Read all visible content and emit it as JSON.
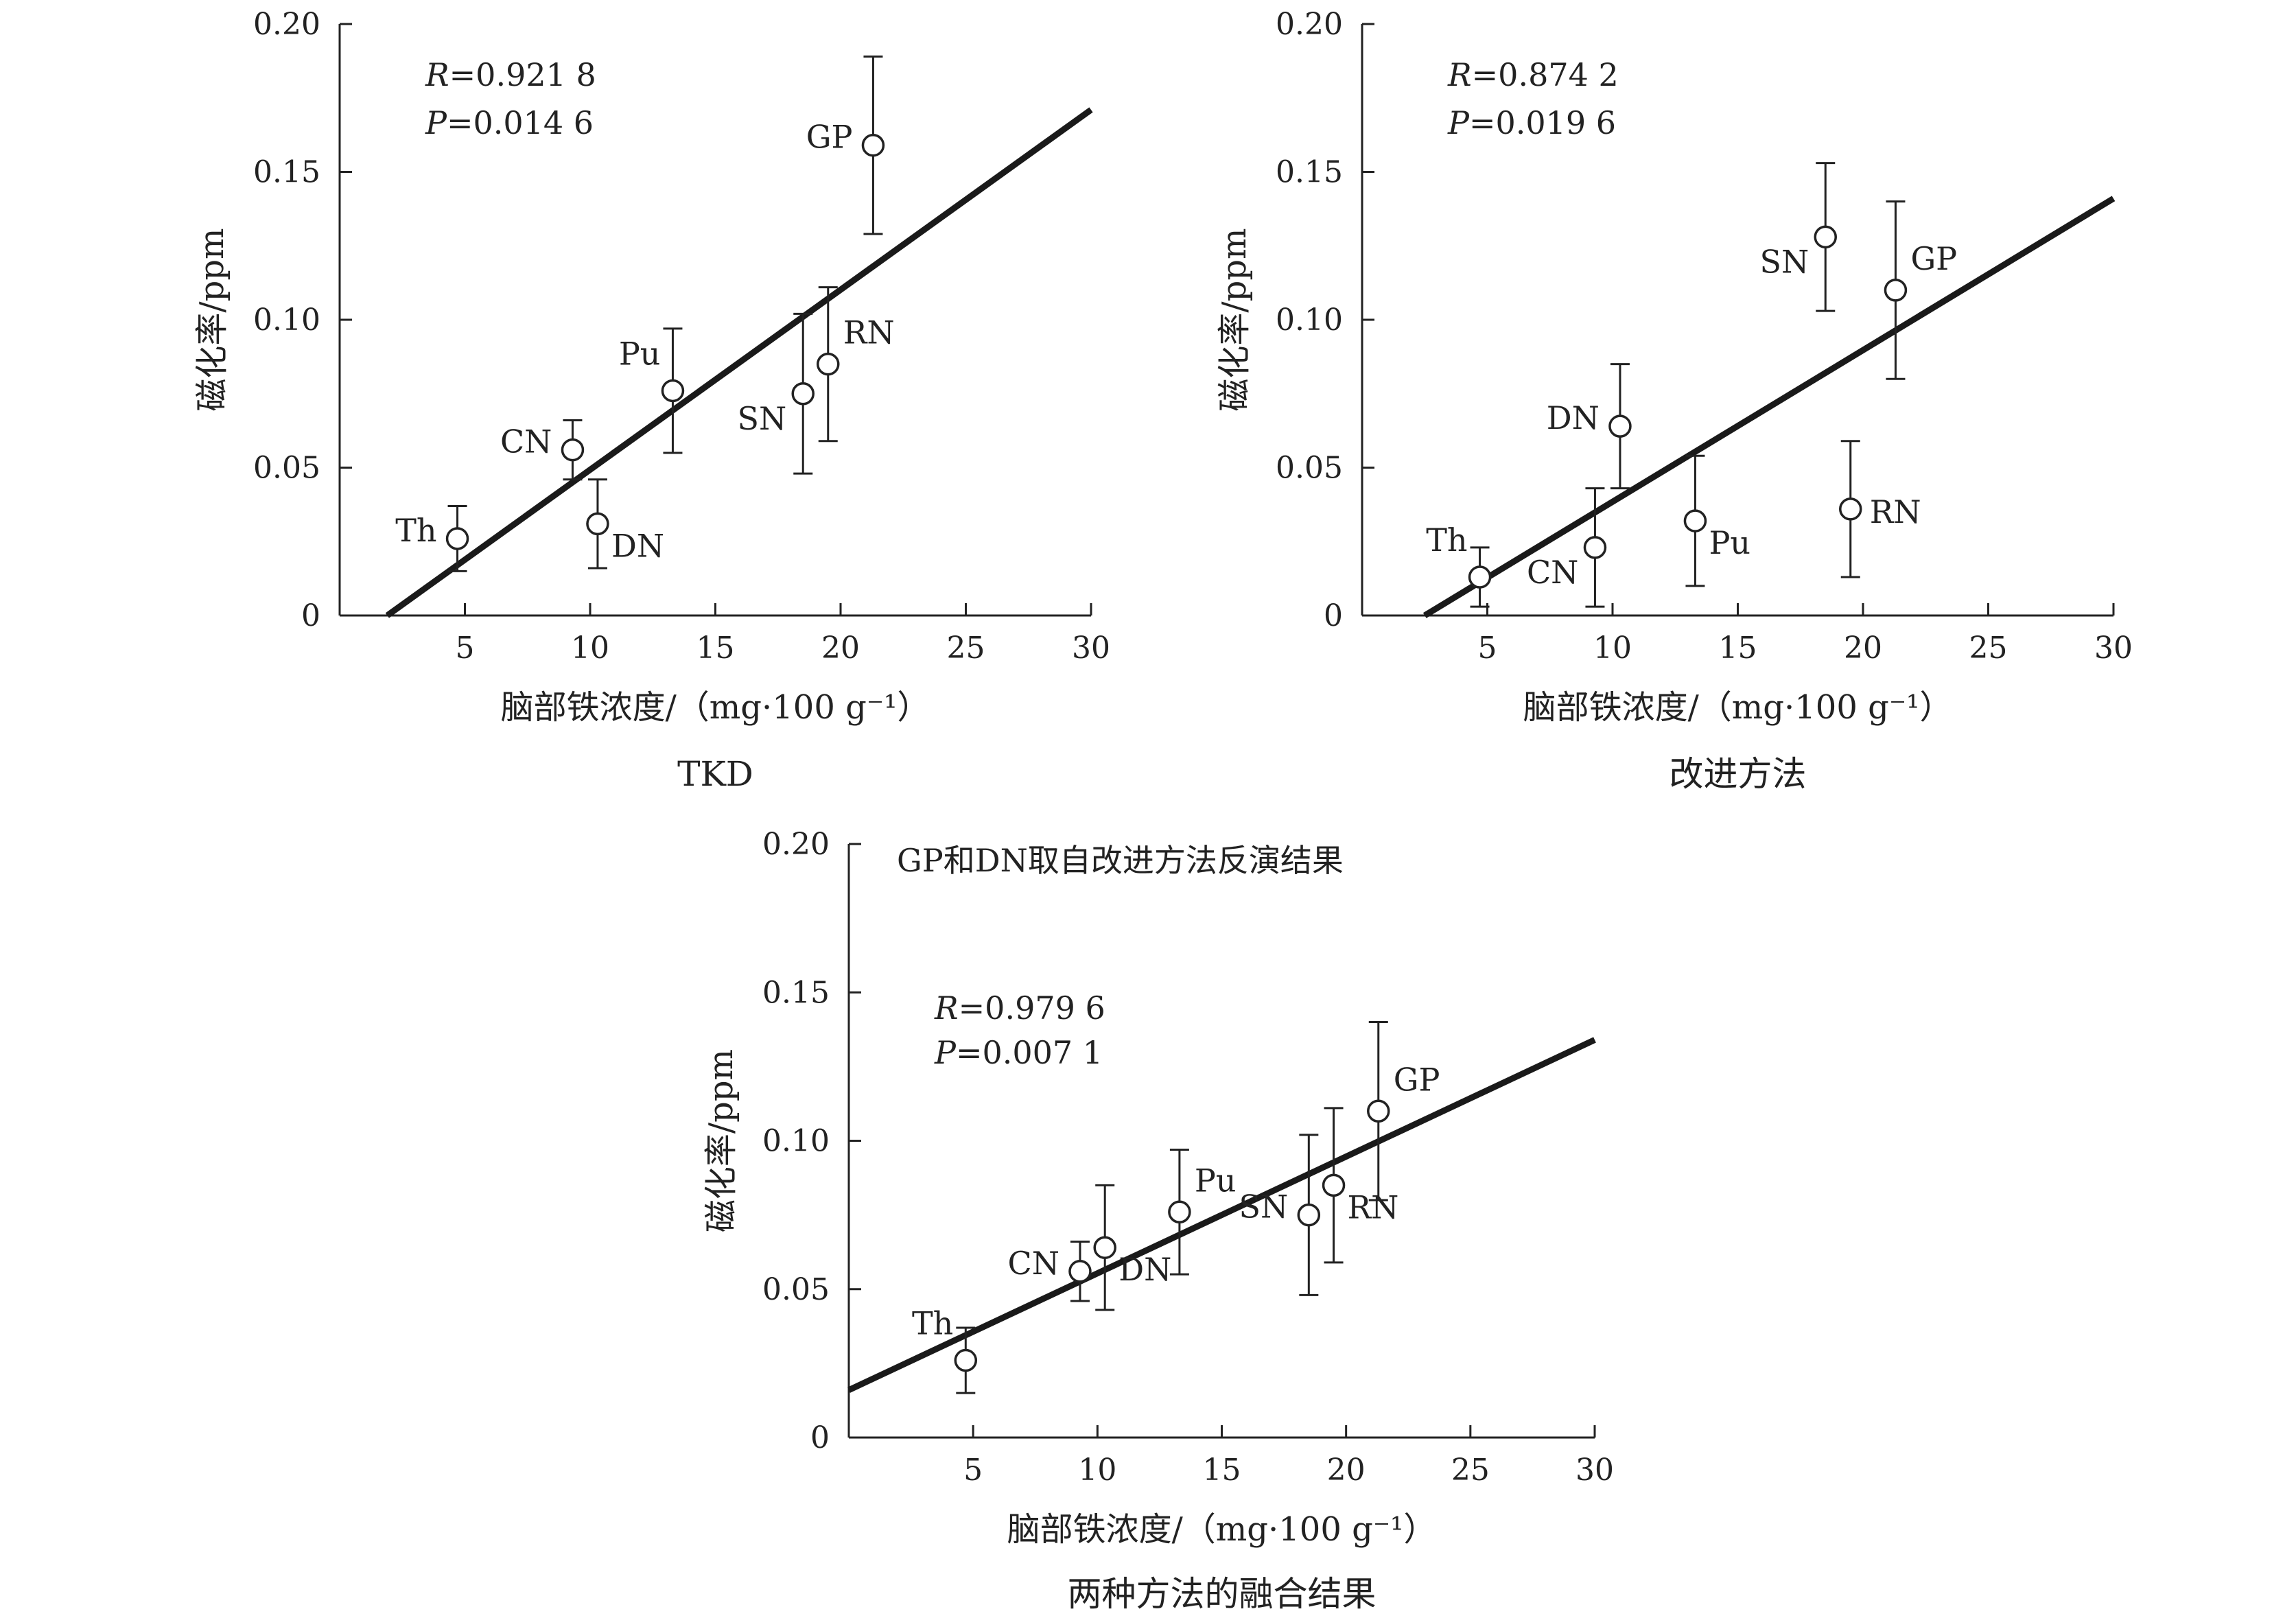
{
  "chart_data": [
    {
      "type": "scatter",
      "caption": "TKD",
      "xlabel": "脑部铁浓度/（mg·100 g⁻¹）",
      "ylabel": "磁化率/ppm",
      "xlim": [
        0,
        30
      ],
      "ylim": [
        0,
        0.2
      ],
      "xticks": [
        5,
        10,
        15,
        20,
        25,
        30
      ],
      "yticks": [
        0,
        0.05,
        0.1,
        0.15,
        0.2
      ],
      "ytick_labels": [
        "0",
        "0.05",
        "0.10",
        "0.15",
        "0.20"
      ],
      "stats": {
        "R_label": "R",
        "R_value": "=0.921 8",
        "P_label": "P",
        "P_value": "=0.014 6"
      },
      "note": "",
      "points": [
        {
          "label": "Th",
          "x": 4.7,
          "y": 0.026,
          "yerr_low": 0.015,
          "yerr_high": 0.037,
          "label_pos": "left"
        },
        {
          "label": "CN",
          "x": 9.3,
          "y": 0.056,
          "yerr_low": 0.046,
          "yerr_high": 0.066,
          "label_pos": "left"
        },
        {
          "label": "DN",
          "x": 10.3,
          "y": 0.031,
          "yerr_low": 0.016,
          "yerr_high": 0.046,
          "label_pos": "right-below"
        },
        {
          "label": "Pu",
          "x": 13.3,
          "y": 0.076,
          "yerr_low": 0.055,
          "yerr_high": 0.097,
          "label_pos": "upper-left"
        },
        {
          "label": "SN",
          "x": 18.5,
          "y": 0.075,
          "yerr_low": 0.048,
          "yerr_high": 0.102,
          "label_pos": "left-below"
        },
        {
          "label": "RN",
          "x": 19.5,
          "y": 0.085,
          "yerr_low": 0.059,
          "yerr_high": 0.111,
          "label_pos": "upper-right"
        },
        {
          "label": "GP",
          "x": 21.3,
          "y": 0.159,
          "yerr_low": 0.129,
          "yerr_high": 0.189,
          "label_pos": "left"
        }
      ],
      "fit_line": {
        "x": [
          1.9,
          30
        ],
        "y": [
          0,
          0.171
        ]
      }
    },
    {
      "type": "scatter",
      "caption": "改进方法",
      "xlabel": "脑部铁浓度/（mg·100 g⁻¹）",
      "ylabel": "磁化率/ppm",
      "xlim": [
        0,
        30
      ],
      "ylim": [
        0,
        0.2
      ],
      "xticks": [
        5,
        10,
        15,
        20,
        25,
        30
      ],
      "yticks": [
        0,
        0.05,
        0.1,
        0.15,
        0.2
      ],
      "ytick_labels": [
        "0",
        "0.05",
        "0.10",
        "0.15",
        "0.20"
      ],
      "stats": {
        "R_label": "R",
        "R_value": "=0.874 2",
        "P_label": "P",
        "P_value": "=0.019 6"
      },
      "note": "",
      "points": [
        {
          "label": "Th",
          "x": 4.7,
          "y": 0.013,
          "yerr_low": 0.003,
          "yerr_high": 0.023,
          "label_pos": "upper-left"
        },
        {
          "label": "CN",
          "x": 9.3,
          "y": 0.023,
          "yerr_low": 0.003,
          "yerr_high": 0.043,
          "label_pos": "left-below"
        },
        {
          "label": "DN",
          "x": 10.3,
          "y": 0.064,
          "yerr_low": 0.043,
          "yerr_high": 0.085,
          "label_pos": "left"
        },
        {
          "label": "Pu",
          "x": 13.3,
          "y": 0.032,
          "yerr_low": 0.01,
          "yerr_high": 0.054,
          "label_pos": "right-below"
        },
        {
          "label": "SN",
          "x": 18.5,
          "y": 0.128,
          "yerr_low": 0.103,
          "yerr_high": 0.153,
          "label_pos": "left-below"
        },
        {
          "label": "RN",
          "x": 19.5,
          "y": 0.036,
          "yerr_low": 0.013,
          "yerr_high": 0.059,
          "label_pos": "right"
        },
        {
          "label": "GP",
          "x": 21.3,
          "y": 0.11,
          "yerr_low": 0.08,
          "yerr_high": 0.14,
          "label_pos": "upper-right"
        }
      ],
      "fit_line": {
        "x": [
          2.5,
          30
        ],
        "y": [
          0,
          0.141
        ]
      }
    },
    {
      "type": "scatter",
      "caption": "两种方法的融合结果",
      "xlabel": "脑部铁浓度/（mg·100 g⁻¹）",
      "ylabel": "磁化率/ppm",
      "xlim": [
        0,
        30
      ],
      "ylim": [
        0,
        0.2
      ],
      "xticks": [
        5,
        10,
        15,
        20,
        25,
        30
      ],
      "yticks": [
        0,
        0.05,
        0.1,
        0.15,
        0.2
      ],
      "ytick_labels": [
        "0",
        "0.05",
        "0.10",
        "0.15",
        "0.20"
      ],
      "stats": {
        "R_label": "R",
        "R_value": "=0.979 6",
        "P_label": "P",
        "P_value": "=0.007 1"
      },
      "note": "GP和DN取自改进方法反演结果",
      "points": [
        {
          "label": "Th",
          "x": 4.7,
          "y": 0.026,
          "yerr_low": 0.015,
          "yerr_high": 0.037,
          "label_pos": "upper-left"
        },
        {
          "label": "CN",
          "x": 9.3,
          "y": 0.056,
          "yerr_low": 0.046,
          "yerr_high": 0.066,
          "label_pos": "left"
        },
        {
          "label": "DN",
          "x": 10.3,
          "y": 0.064,
          "yerr_low": 0.043,
          "yerr_high": 0.085,
          "label_pos": "right-below"
        },
        {
          "label": "Pu",
          "x": 13.3,
          "y": 0.076,
          "yerr_low": 0.055,
          "yerr_high": 0.097,
          "label_pos": "upper-right"
        },
        {
          "label": "SN",
          "x": 18.5,
          "y": 0.075,
          "yerr_low": 0.048,
          "yerr_high": 0.102,
          "label_pos": "left"
        },
        {
          "label": "RN",
          "x": 19.5,
          "y": 0.085,
          "yerr_low": 0.059,
          "yerr_high": 0.111,
          "label_pos": "right-below"
        },
        {
          "label": "GP",
          "x": 21.3,
          "y": 0.11,
          "yerr_low": 0.08,
          "yerr_high": 0.14,
          "label_pos": "upper-right"
        }
      ],
      "fit_line": {
        "x": [
          0,
          30
        ],
        "y": [
          0.016,
          0.134
        ]
      }
    }
  ]
}
